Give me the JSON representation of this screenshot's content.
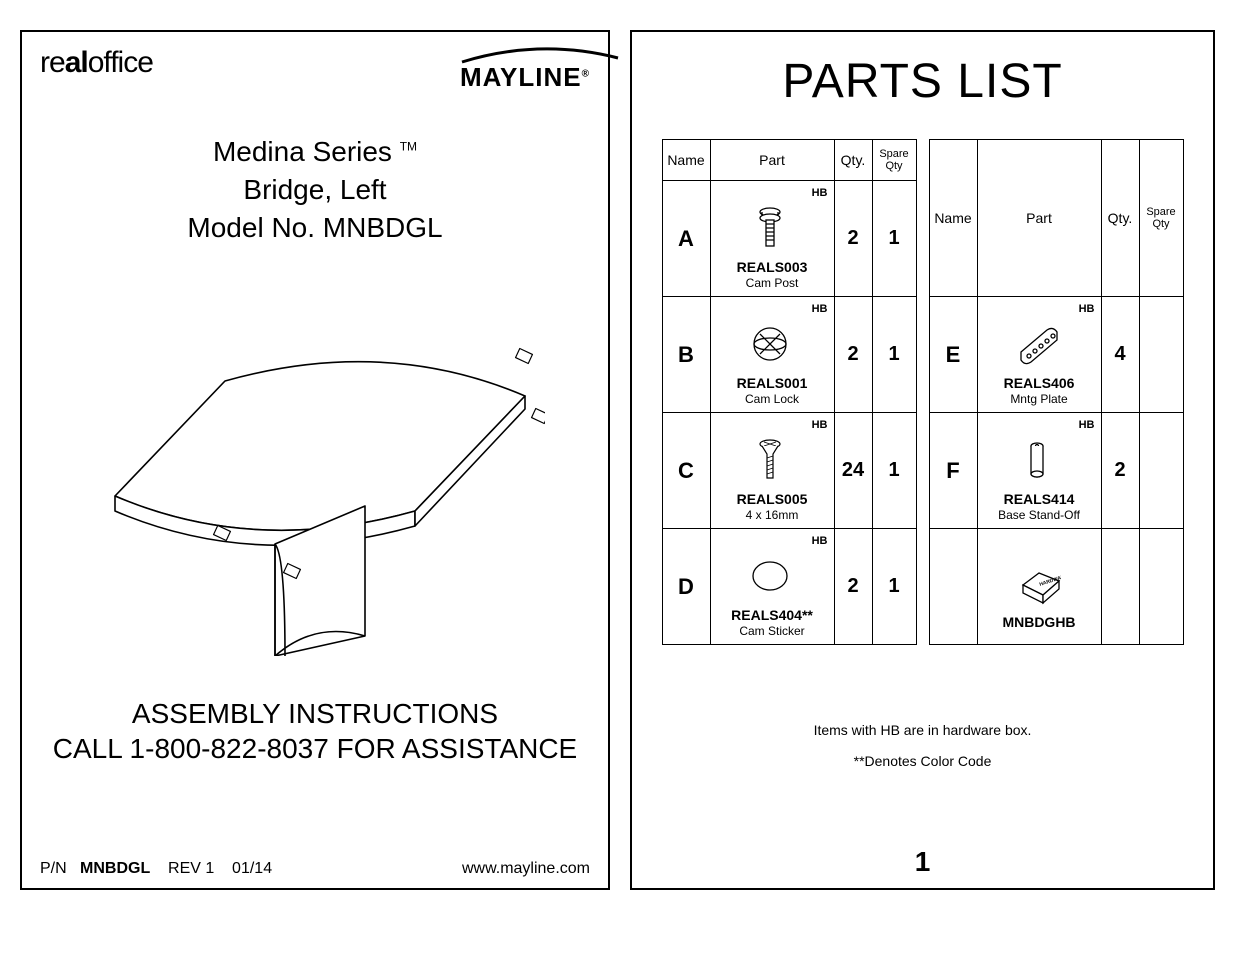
{
  "left": {
    "brand_real_prefix": "re",
    "brand_real_bold": "al",
    "brand_real_suffix": "office",
    "brand_mayline": "MAYLINE",
    "series": "Medina Series",
    "tm": "TM",
    "product_line2": "Bridge, Left",
    "product_line3": "Model No. MNBDGL",
    "assembly_l1": "ASSEMBLY INSTRUCTIONS",
    "assembly_l2": "CALL 1-800-822-8037 FOR ASSISTANCE",
    "footer_pn_label": "P/N",
    "footer_pn": "MNBDGL",
    "footer_rev": "REV 1",
    "footer_date": "01/14",
    "footer_url": "www.mayline.com"
  },
  "right": {
    "title": "PARTS LIST",
    "headers": {
      "name": "Name",
      "part": "Part",
      "qty": "Qty.",
      "spare": "Spare Qty"
    },
    "notes_l1": "Items with HB are in hardware box.",
    "notes_l2": "**Denotes Color Code",
    "page_num": "1",
    "hb_tag": "HB",
    "table1": [
      {
        "name": "A",
        "code": "REALS003",
        "sub": "Cam Post",
        "qty": "2",
        "spare": "1",
        "hb": true,
        "icon": "campost"
      },
      {
        "name": "B",
        "code": "REALS001",
        "sub": "Cam Lock",
        "qty": "2",
        "spare": "1",
        "hb": true,
        "icon": "camlock"
      },
      {
        "name": "C",
        "code": "REALS005",
        "sub": "4 x 16mm",
        "qty": "24",
        "spare": "1",
        "hb": true,
        "icon": "screw"
      },
      {
        "name": "D",
        "code": "REALS404**",
        "sub": "Cam Sticker",
        "qty": "2",
        "spare": "1",
        "hb": true,
        "icon": "sticker"
      }
    ],
    "table2": [
      {
        "name": "E",
        "code": "REALS406",
        "sub": "Mntg Plate",
        "qty": "4",
        "spare": "",
        "hb": true,
        "icon": "plate"
      },
      {
        "name": "F",
        "code": "REALS414",
        "sub": "Base Stand-Off",
        "qty": "2",
        "spare": "",
        "hb": true,
        "icon": "standoff"
      },
      {
        "name": "",
        "code": "MNBDGHB",
        "sub": "",
        "qty": "",
        "spare": "",
        "hb": false,
        "icon": "hwbox"
      }
    ]
  },
  "style": {
    "stroke": "#000000",
    "bg": "#ffffff",
    "border_width": 2,
    "title_fontsize": 48,
    "body_fontsize": 16
  }
}
